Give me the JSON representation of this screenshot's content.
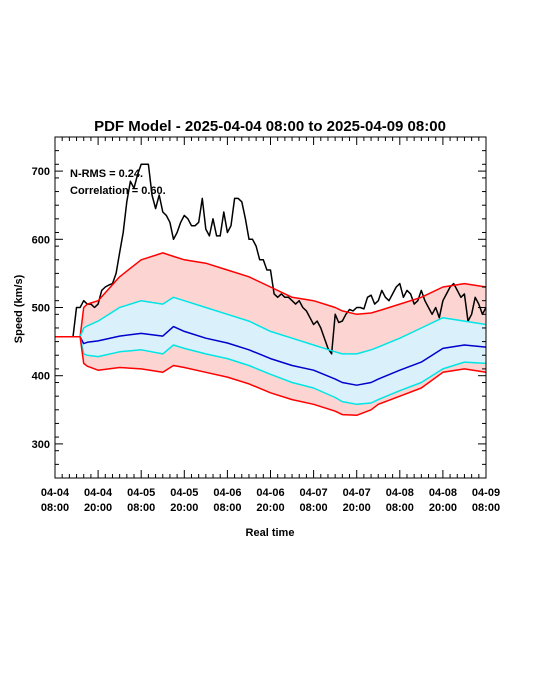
{
  "chart_data": {
    "type": "line",
    "title": "PDF Model - 2025-04-04 08:00 to 2025-04-09 08:00",
    "xlabel": "Real time",
    "ylabel": "Speed (km/s)",
    "xlim": [
      0,
      120
    ],
    "ylim": [
      250,
      750
    ],
    "x_unit": "hours since 2025-04-04 08:00",
    "x_ticks": [
      {
        "x": 0,
        "line1": "04-04",
        "line2": "08:00"
      },
      {
        "x": 12,
        "line1": "04-04",
        "line2": "20:00"
      },
      {
        "x": 24,
        "line1": "04-05",
        "line2": "08:00"
      },
      {
        "x": 36,
        "line1": "04-05",
        "line2": "20:00"
      },
      {
        "x": 48,
        "line1": "04-06",
        "line2": "08:00"
      },
      {
        "x": 60,
        "line1": "04-06",
        "line2": "20:00"
      },
      {
        "x": 72,
        "line1": "04-07",
        "line2": "08:00"
      },
      {
        "x": 84,
        "line1": "04-07",
        "line2": "20:00"
      },
      {
        "x": 96,
        "line1": "04-08",
        "line2": "08:00"
      },
      {
        "x": 108,
        "line1": "04-08",
        "line2": "20:00"
      },
      {
        "x": 120,
        "line1": "04-09",
        "line2": "08:00"
      }
    ],
    "y_ticks": [
      300,
      400,
      500,
      600,
      700
    ],
    "annotations": [
      "N-RMS = 0.24.",
      "Correlation = 0.60."
    ],
    "model_x": [
      0,
      7,
      8,
      9,
      12,
      18,
      24,
      30,
      33,
      36,
      42,
      48,
      54,
      60,
      66,
      72,
      78,
      80,
      84,
      88,
      90,
      96,
      102,
      108,
      114,
      120
    ],
    "series": [
      {
        "color": "#000000",
        "x": [
          0,
          5,
          6,
          7,
          8,
          9,
          10,
          11,
          12,
          13,
          14,
          15,
          16,
          17,
          18,
          19,
          20,
          21,
          22,
          23,
          24,
          25,
          26,
          27,
          28,
          29,
          30,
          31,
          32,
          33,
          34,
          35,
          36,
          37,
          38,
          39,
          40,
          41,
          42,
          43,
          44,
          45,
          46,
          47,
          48,
          49,
          50,
          51,
          52,
          53,
          54,
          55,
          56,
          57,
          58,
          59,
          60,
          61,
          62,
          63,
          64,
          65,
          66,
          67,
          68,
          69,
          70,
          71,
          72,
          73,
          74,
          75,
          76,
          77,
          78,
          79,
          80,
          81,
          82,
          83,
          84,
          85,
          86,
          87,
          88,
          89,
          90,
          91,
          92,
          93,
          94,
          95,
          96,
          97,
          98,
          99,
          100,
          101,
          102,
          103,
          104,
          105,
          106,
          107,
          108,
          109,
          110,
          111,
          112,
          113,
          114,
          115,
          116,
          117,
          118,
          119,
          120
        ],
        "values": [
          457,
          457,
          500,
          500,
          510,
          505,
          505,
          500,
          505,
          525,
          530,
          533,
          535,
          550,
          580,
          610,
          655,
          685,
          675,
          695,
          710,
          710,
          710,
          665,
          645,
          665,
          640,
          635,
          625,
          600,
          610,
          625,
          635,
          630,
          620,
          620,
          625,
          660,
          615,
          605,
          630,
          605,
          605,
          640,
          610,
          620,
          660,
          660,
          655,
          630,
          600,
          600,
          590,
          570,
          570,
          555,
          555,
          520,
          515,
          520,
          515,
          515,
          510,
          505,
          510,
          500,
          495,
          485,
          475,
          480,
          470,
          455,
          440,
          432,
          490,
          478,
          480,
          490,
          497,
          495,
          500,
          500,
          498,
          515,
          518,
          505,
          510,
          525,
          515,
          510,
          520,
          530,
          535,
          515,
          525,
          520,
          505,
          510,
          525,
          510,
          500,
          490,
          500,
          485,
          510,
          520,
          530,
          535,
          525,
          515,
          520,
          480,
          490,
          515,
          505,
          490,
          500
        ]
      },
      {
        "color": "#ff0000",
        "role": "upper-bound",
        "values": [
          457,
          457,
          500,
          505,
          510,
          545,
          570,
          580,
          575,
          570,
          565,
          555,
          545,
          530,
          515,
          510,
          500,
          495,
          490,
          492,
          495,
          505,
          515,
          530,
          535,
          530
        ]
      },
      {
        "color": "#00e5e5",
        "role": "upper-inner",
        "values": [
          457,
          457,
          470,
          473,
          480,
          500,
          510,
          505,
          515,
          510,
          500,
          490,
          480,
          465,
          455,
          445,
          435,
          432,
          432,
          438,
          442,
          455,
          470,
          485,
          480,
          475
        ]
      },
      {
        "color": "#0000cc",
        "role": "median",
        "values": [
          457,
          457,
          447,
          449,
          451,
          458,
          462,
          458,
          472,
          465,
          455,
          448,
          438,
          425,
          415,
          408,
          395,
          390,
          386,
          390,
          395,
          408,
          420,
          440,
          445,
          442
        ]
      },
      {
        "color": "#00e5e5",
        "role": "lower-inner",
        "values": [
          457,
          457,
          432,
          430,
          428,
          435,
          438,
          432,
          445,
          440,
          432,
          425,
          415,
          402,
          390,
          382,
          368,
          362,
          358,
          360,
          365,
          378,
          390,
          410,
          420,
          418
        ]
      },
      {
        "color": "#ff0000",
        "role": "lower-bound",
        "values": [
          457,
          457,
          418,
          414,
          408,
          412,
          410,
          405,
          415,
          412,
          405,
          398,
          388,
          375,
          365,
          358,
          348,
          343,
          342,
          350,
          358,
          370,
          382,
          405,
          410,
          405
        ]
      }
    ],
    "band_colors": {
      "outer": "#fcd5d2",
      "inner": "#daf0fb"
    },
    "grid": false,
    "legend": "none"
  }
}
